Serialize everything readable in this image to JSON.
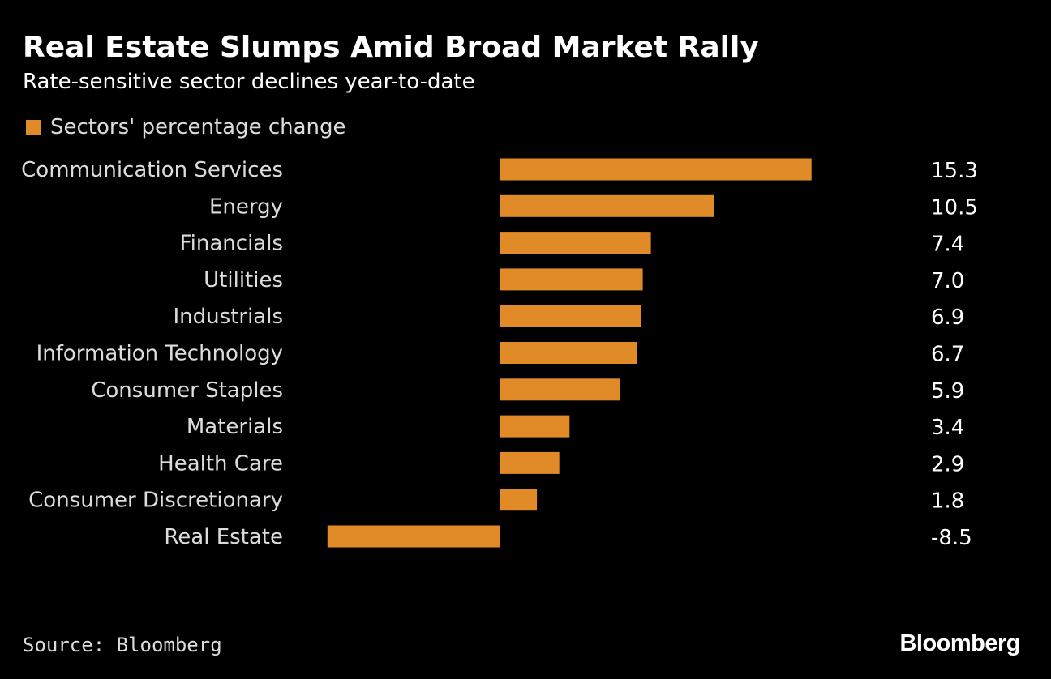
{
  "header": {
    "title": "Real Estate Slumps Amid Broad Market Rally",
    "subtitle": "Rate-sensitive sector declines year-to-date"
  },
  "legend": {
    "label": "Sectors' percentage change"
  },
  "footer": {
    "source": "Source: Bloomberg",
    "brand": "Bloomberg"
  },
  "colors": {
    "background": "#000000",
    "bar": "#E08B28",
    "text": "#FFFFFF"
  },
  "chart_data": {
    "type": "bar",
    "orientation": "horizontal",
    "categories": [
      "Communication Services",
      "Energy",
      "Financials",
      "Utilities",
      "Industrials",
      "Information Technology",
      "Consumer Staples",
      "Materials",
      "Health Care",
      "Consumer Discretionary",
      "Real Estate"
    ],
    "series": [
      {
        "name": "Sectors' percentage change",
        "values": [
          15.3,
          10.5,
          7.4,
          7.0,
          6.9,
          6.7,
          5.9,
          3.4,
          2.9,
          1.8,
          -8.5
        ]
      }
    ],
    "value_labels": [
      "15.3",
      "10.5",
      "7.4",
      "7.0",
      "6.9",
      "6.7",
      "5.9",
      "3.4",
      "2.9",
      "1.8",
      "-8.5"
    ],
    "title": "Real Estate Slumps Amid Broad Market Rally",
    "subtitle": "Rate-sensitive sector declines year-to-date",
    "xlabel": "",
    "ylabel": "",
    "xlim": [
      -8.5,
      15.3
    ],
    "grid": false,
    "legend_position": "top-left"
  }
}
